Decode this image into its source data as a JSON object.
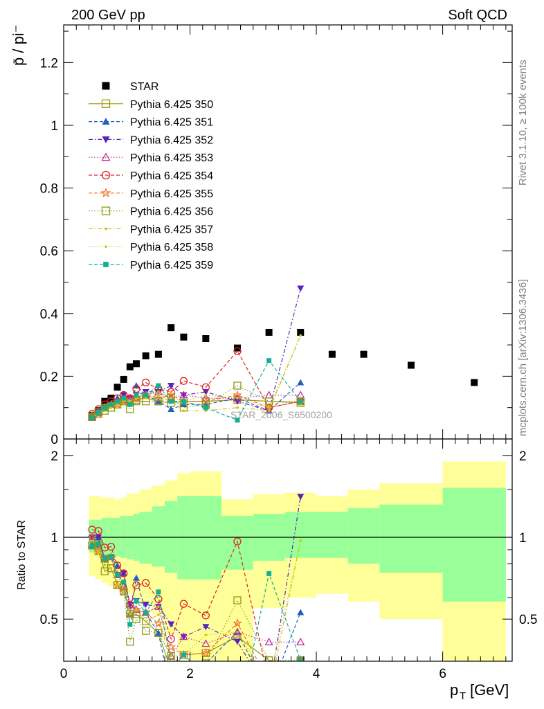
{
  "header": {
    "left": "200 GeV pp",
    "right": "Soft QCD"
  },
  "side_labels": {
    "rivet": "Rivet 3.1.10, ≥ 100k events",
    "mcplots": "mcplots.cern.ch [arXiv:1306.3436]"
  },
  "watermark": "STAR_2006_S6500200",
  "colors": {
    "STAR": "#000000",
    "p350": "#9a9a10",
    "p351": "#1f5fbf",
    "p352": "#5a20c0",
    "p353": "#c0309a",
    "p354": "#e02020",
    "p355": "#f07020",
    "p356": "#8a9a10",
    "p357": "#d0c010",
    "p358": "#c8c820",
    "p359": "#10b090",
    "band_outer": "#ffff99",
    "band_inner": "#99ff99"
  },
  "chart_data": [
    {
      "type": "scatter",
      "ylabel": "p̄ / pi⁻",
      "xlim": [
        0,
        7.1
      ],
      "ylim": [
        0,
        1.32
      ],
      "yticks": [
        "0",
        "0.2",
        "0.4",
        "0.6",
        "0.8",
        "1",
        "1.2"
      ],
      "legend_position": "upper-left",
      "series": [
        {
          "name": "STAR",
          "marker": "square-filled",
          "color_key": "STAR",
          "x": [
            0.45,
            0.55,
            0.65,
            0.75,
            0.85,
            0.95,
            1.05,
            1.15,
            1.3,
            1.5,
            1.7,
            1.9,
            2.25,
            2.75,
            3.25,
            3.75,
            4.25,
            4.75,
            5.5,
            6.5
          ],
          "y": [
            0.075,
            0.09,
            0.12,
            0.13,
            0.165,
            0.19,
            0.23,
            0.24,
            0.265,
            0.27,
            0.355,
            0.325,
            0.32,
            0.29,
            0.34,
            0.34,
            0.27,
            0.27,
            0.235,
            0.18
          ]
        },
        {
          "name": "Pythia 6.425 350",
          "marker": "square-open",
          "line": "solid",
          "color_key": "p350",
          "x": [
            0.45,
            0.55,
            0.65,
            0.75,
            0.85,
            0.95,
            1.05,
            1.15,
            1.3,
            1.5,
            1.7,
            1.9,
            2.25,
            2.75,
            3.25,
            3.75
          ],
          "y": [
            0.07,
            0.08,
            0.09,
            0.1,
            0.11,
            0.12,
            0.12,
            0.125,
            0.13,
            0.12,
            0.115,
            0.12,
            0.12,
            0.125,
            0.12,
            0.115
          ]
        },
        {
          "name": "Pythia 6.425 351",
          "marker": "triangle-up-filled",
          "line": "dashed",
          "color_key": "p351",
          "x": [
            0.45,
            0.55,
            0.65,
            0.75,
            0.85,
            0.95,
            1.05,
            1.15,
            1.3,
            1.5,
            1.7,
            1.9,
            2.25,
            2.75,
            3.25,
            3.75
          ],
          "y": [
            0.075,
            0.09,
            0.1,
            0.11,
            0.13,
            0.14,
            0.12,
            0.17,
            0.14,
            0.12,
            0.095,
            0.11,
            0.11,
            0.13,
            0.09,
            0.18
          ]
        },
        {
          "name": "Pythia 6.425 352",
          "marker": "triangle-down-filled",
          "line": "dashdot",
          "color_key": "p352",
          "x": [
            0.45,
            0.55,
            0.65,
            0.75,
            0.85,
            0.95,
            1.05,
            1.15,
            1.3,
            1.5,
            1.7,
            1.9,
            2.25,
            2.75,
            3.25,
            3.75
          ],
          "y": [
            0.075,
            0.09,
            0.1,
            0.11,
            0.12,
            0.14,
            0.13,
            0.14,
            0.15,
            0.15,
            0.17,
            0.14,
            0.15,
            0.12,
            0.09,
            0.48
          ]
        },
        {
          "name": "Pythia 6.425 353",
          "marker": "triangle-up-open",
          "line": "dotted",
          "color_key": "p353",
          "x": [
            0.45,
            0.55,
            0.65,
            0.75,
            0.85,
            0.95,
            1.05,
            1.15,
            1.3,
            1.5,
            1.7,
            1.9,
            2.25,
            2.75,
            3.25,
            3.75
          ],
          "y": [
            0.07,
            0.085,
            0.1,
            0.11,
            0.12,
            0.125,
            0.13,
            0.13,
            0.14,
            0.15,
            0.13,
            0.14,
            0.13,
            0.13,
            0.14,
            0.14
          ]
        },
        {
          "name": "Pythia 6.425 354",
          "marker": "circle-open",
          "line": "dashed",
          "color_key": "p354",
          "x": [
            0.45,
            0.55,
            0.65,
            0.75,
            0.85,
            0.95,
            1.05,
            1.15,
            1.3,
            1.5,
            1.7,
            1.9,
            2.25,
            2.75,
            3.25,
            3.75
          ],
          "y": [
            0.08,
            0.095,
            0.11,
            0.12,
            0.13,
            0.14,
            0.13,
            0.16,
            0.18,
            0.16,
            0.15,
            0.185,
            0.165,
            0.28,
            0.1,
            0.12
          ]
        },
        {
          "name": "Pythia 6.425 355",
          "marker": "star-open",
          "line": "dashed",
          "color_key": "p355",
          "x": [
            0.45,
            0.55,
            0.65,
            0.75,
            0.85,
            0.95,
            1.05,
            1.15,
            1.3,
            1.5,
            1.7,
            1.9,
            2.25,
            2.75,
            3.25,
            3.75
          ],
          "y": [
            0.075,
            0.08,
            0.1,
            0.11,
            0.11,
            0.12,
            0.12,
            0.13,
            0.14,
            0.13,
            0.14,
            0.12,
            0.12,
            0.14,
            0.1,
            0.12
          ]
        },
        {
          "name": "Pythia 6.425 356",
          "marker": "square-open",
          "line": "dotted",
          "color_key": "p356",
          "x": [
            0.45,
            0.55,
            0.65,
            0.75,
            0.85,
            0.95,
            1.05,
            1.15,
            1.3,
            1.5,
            1.7,
            1.9,
            2.25,
            2.75,
            3.25,
            3.75
          ],
          "y": [
            0.07,
            0.085,
            0.1,
            0.1,
            0.11,
            0.12,
            0.095,
            0.12,
            0.12,
            0.12,
            0.13,
            0.1,
            0.11,
            0.17,
            0.12,
            0.12
          ]
        },
        {
          "name": "Pythia 6.425 357",
          "marker": "dot",
          "line": "dashdot",
          "color_key": "p357",
          "x": [
            0.45,
            0.55,
            0.65,
            0.75,
            0.85,
            0.95,
            1.05,
            1.15,
            1.3,
            1.5,
            1.7,
            1.9,
            2.25,
            2.75,
            3.25,
            3.75
          ],
          "y": [
            0.07,
            0.08,
            0.095,
            0.1,
            0.11,
            0.12,
            0.12,
            0.13,
            0.13,
            0.14,
            0.12,
            0.09,
            0.09,
            0.1,
            0.09,
            0.33
          ]
        },
        {
          "name": "Pythia 6.425 358",
          "marker": "dot",
          "line": "dotted",
          "color_key": "p358",
          "x": [
            0.45,
            0.55,
            0.65,
            0.75,
            0.85,
            0.95,
            1.05,
            1.15,
            1.3,
            1.5,
            1.7,
            1.9,
            2.25,
            2.75,
            3.25,
            3.75
          ],
          "y": [
            0.07,
            0.085,
            0.1,
            0.11,
            0.12,
            0.13,
            0.12,
            0.13,
            0.14,
            0.15,
            0.13,
            0.12,
            0.14,
            0.13,
            0.1,
            0.33
          ]
        },
        {
          "name": "Pythia 6.425 359",
          "marker": "square-small-filled",
          "line": "dashed",
          "color_key": "p359",
          "x": [
            0.45,
            0.55,
            0.65,
            0.75,
            0.85,
            0.95,
            1.05,
            1.15,
            1.3,
            1.5,
            1.7,
            1.9,
            2.25,
            2.75,
            3.25,
            3.75
          ],
          "y": [
            0.07,
            0.085,
            0.1,
            0.11,
            0.12,
            0.13,
            0.11,
            0.14,
            0.14,
            0.17,
            0.12,
            0.12,
            0.1,
            0.06,
            0.25,
            0.12
          ]
        }
      ]
    },
    {
      "type": "line",
      "ylabel": "Ratio to STAR",
      "xlabel": "p_T [GeV]",
      "xlim": [
        0,
        7.1
      ],
      "ylim": [
        0.35,
        2.3
      ],
      "xticks": [
        "0",
        "2",
        "4",
        "6"
      ],
      "yticks": [
        "0.5",
        "1",
        "2"
      ],
      "bands": {
        "edges": [
          0.4,
          0.5,
          0.6,
          0.7,
          0.8,
          0.9,
          1.0,
          1.1,
          1.2,
          1.4,
          1.6,
          1.8,
          2.0,
          2.5,
          3.0,
          3.5,
          4.0,
          4.5,
          5.0,
          6.0,
          7.0
        ],
        "outer_lo": [
          0.72,
          0.7,
          0.68,
          0.66,
          0.65,
          0.64,
          0.62,
          0.6,
          0.56,
          0.52,
          0.44,
          0.38,
          0.32,
          0.3,
          0.55,
          0.6,
          0.62,
          0.58,
          0.5,
          0.3
        ],
        "outer_hi": [
          1.42,
          1.42,
          1.4,
          1.4,
          1.38,
          1.4,
          1.45,
          1.45,
          1.5,
          1.55,
          1.62,
          1.72,
          1.75,
          1.38,
          1.44,
          1.46,
          1.42,
          1.5,
          1.58,
          1.9
        ],
        "inner_lo": [
          0.88,
          0.88,
          0.86,
          0.86,
          0.85,
          0.84,
          0.83,
          0.82,
          0.8,
          0.78,
          0.74,
          0.7,
          0.7,
          0.76,
          0.82,
          0.84,
          0.84,
          0.8,
          0.74,
          0.58
        ],
        "inner_hi": [
          1.16,
          1.16,
          1.18,
          1.18,
          1.18,
          1.2,
          1.2,
          1.22,
          1.24,
          1.3,
          1.36,
          1.42,
          1.42,
          1.2,
          1.22,
          1.24,
          1.24,
          1.28,
          1.32,
          1.52
        ]
      }
    }
  ]
}
